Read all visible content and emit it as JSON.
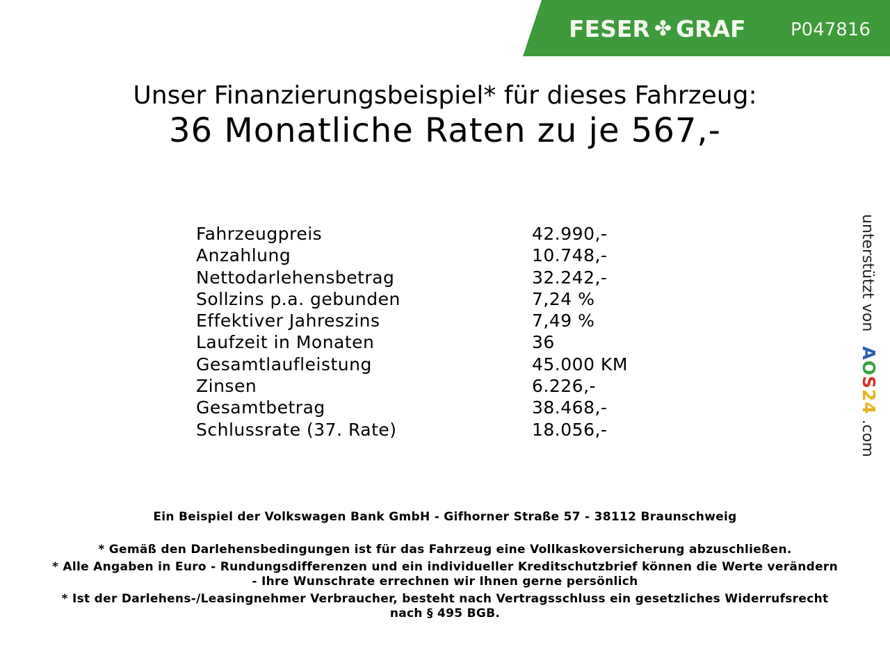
{
  "header": {
    "brand_left": "FESER",
    "brand_right": "GRAF",
    "brand_icon": "clover-icon",
    "brand_color": "#3e9a3a",
    "product_id": "P047816"
  },
  "title": {
    "line1": "Unser Finanzierungsbeispiel* für dieses Fahrzeug:",
    "line2": "36 Monatliche Raten zu je 567,-"
  },
  "rows": [
    {
      "label": "Fahrzeugpreis",
      "value": "42.990,-"
    },
    {
      "label": "Anzahlung",
      "value": "10.748,-"
    },
    {
      "label": "Nettodarlehensbetrag",
      "value": "32.242,-"
    },
    {
      "label": "Sollzins p.a. gebunden",
      "value": "7,24 %"
    },
    {
      "label": "Effektiver Jahreszins",
      "value": "7,49 %"
    },
    {
      "label": "Laufzeit in Monaten",
      "value": "36"
    },
    {
      "label": "Gesamtlaufleistung",
      "value": "45.000 KM"
    },
    {
      "label": "Zinsen",
      "value": "6.226,-"
    },
    {
      "label": "Gesamtbetrag",
      "value": "38.468,-"
    },
    {
      "label": "Schlussrate (37. Rate)",
      "value": "18.056,-"
    }
  ],
  "side": {
    "text": "unterstützt von",
    "logo": "AOS24",
    "suffix": ".com"
  },
  "footer": {
    "bank": "Ein Beispiel der Volkswagen Bank GmbH - Gifhorner Straße 57 - 38112 Braunschweig",
    "note1": "* Gemäß den Darlehensbedingungen ist für das Fahrzeug eine Vollkaskoversicherung abzuschließen.",
    "note2a": "* Alle Angaben in Euro - Rundungsdifferenzen und ein individueller Kreditschutzbrief können die Werte verändern",
    "note2b": "- Ihre Wunschrate errechnen wir Ihnen gerne persönlich",
    "note3a": "* Ist der Darlehens-/Leasingnehmer Verbraucher, besteht nach Vertragsschluss ein gesetzliches Widerrufsrecht",
    "note3b": "nach § 495 BGB."
  }
}
